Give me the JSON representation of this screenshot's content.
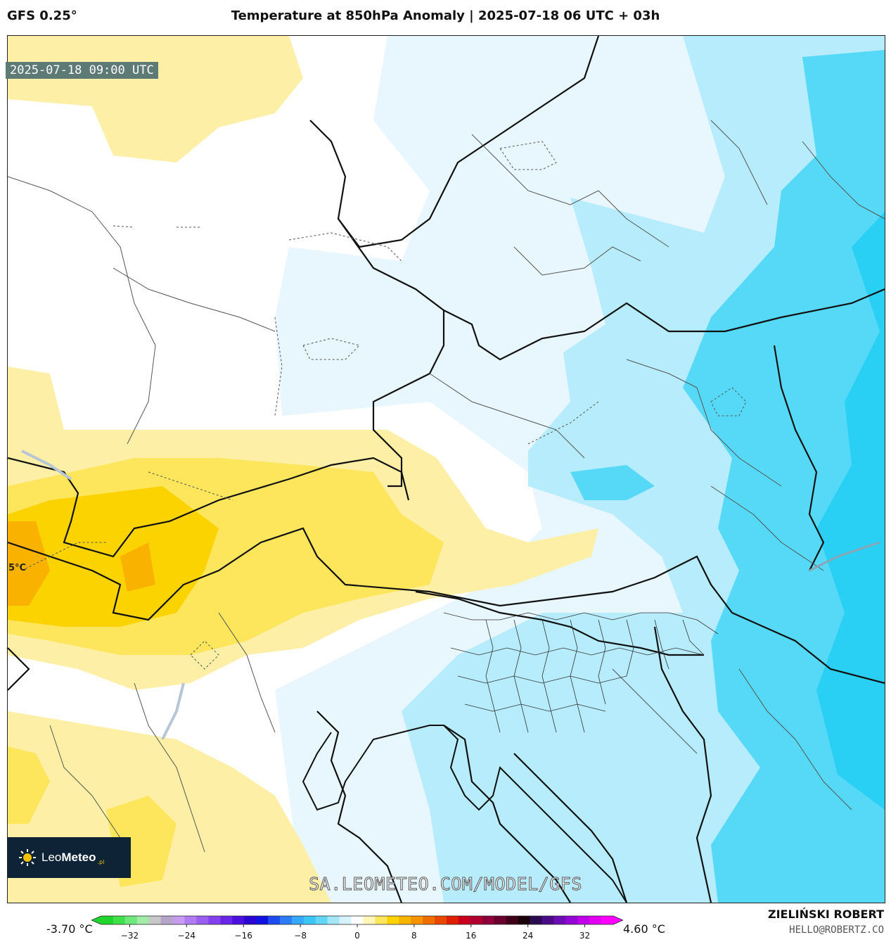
{
  "header": {
    "model": "GFS 0.25°",
    "title": "Temperature at 850hPa Anomaly | 2025-07-18 06 UTC + 03h"
  },
  "map": {
    "valid_time": "2025-07-18 09:00 UTC",
    "edge_label": "5°C",
    "region": "Central Europe (Germany, Czechia, Poland, Austria, Hungary, Slovenia, Croatia, N Italy)",
    "palette": {
      "warm_light": "#fdf0a6",
      "warm_mid": "#fde55c",
      "warm_strong": "#fad300",
      "warm_max": "#f9b200",
      "neutral": "#ffffff",
      "cool_light": "#e8f6fd",
      "cool_mid": "#b6ecfb",
      "cool_strong": "#56d9f6",
      "cool_max": "#2ad0f4"
    }
  },
  "logo": {
    "brand_light": "Leo",
    "brand_bold": "Meteo",
    "suffix": ".pl"
  },
  "watermark": "SA.LEOMETEO.COM/MODEL/GFS",
  "colorbar": {
    "min_label": "-3.70 °C",
    "max_label": "4.60 °C",
    "ticks": [
      "−32",
      "−24",
      "−16",
      "−8",
      "0",
      "8",
      "16",
      "24",
      "32"
    ],
    "tick_values": [
      -32,
      -24,
      -16,
      -8,
      0,
      8,
      16,
      24,
      32
    ],
    "range": [
      -36,
      36
    ],
    "colors": [
      "#1fd42a",
      "#3fe04a",
      "#6fe87a",
      "#a0eca8",
      "#c7c7c7",
      "#b7a5c9",
      "#c79bef",
      "#b07cf2",
      "#9a5ef0",
      "#8340ec",
      "#6a26e6",
      "#4b10dd",
      "#2a05d4",
      "#0f12e0",
      "#1d4bf0",
      "#2a7df6",
      "#35a8f8",
      "#3cc6f6",
      "#63d6f5",
      "#a4e7f7",
      "#d6f3fb",
      "#ffffff",
      "#fff7b8",
      "#fde55c",
      "#fad300",
      "#f7b400",
      "#f49400",
      "#ef6f00",
      "#e84800",
      "#de2000",
      "#c9001a",
      "#b00030",
      "#8e0038",
      "#6a002e",
      "#3e0018",
      "#1a0008",
      "#2c0a50",
      "#4a0b86",
      "#6c0cb5",
      "#9406d6",
      "#c000e8",
      "#e100f0",
      "#ff00ff"
    ]
  },
  "credit": {
    "name": "ZIELIŃSKI ROBERT",
    "email": "HELLO@ROBERTZ.CO"
  }
}
